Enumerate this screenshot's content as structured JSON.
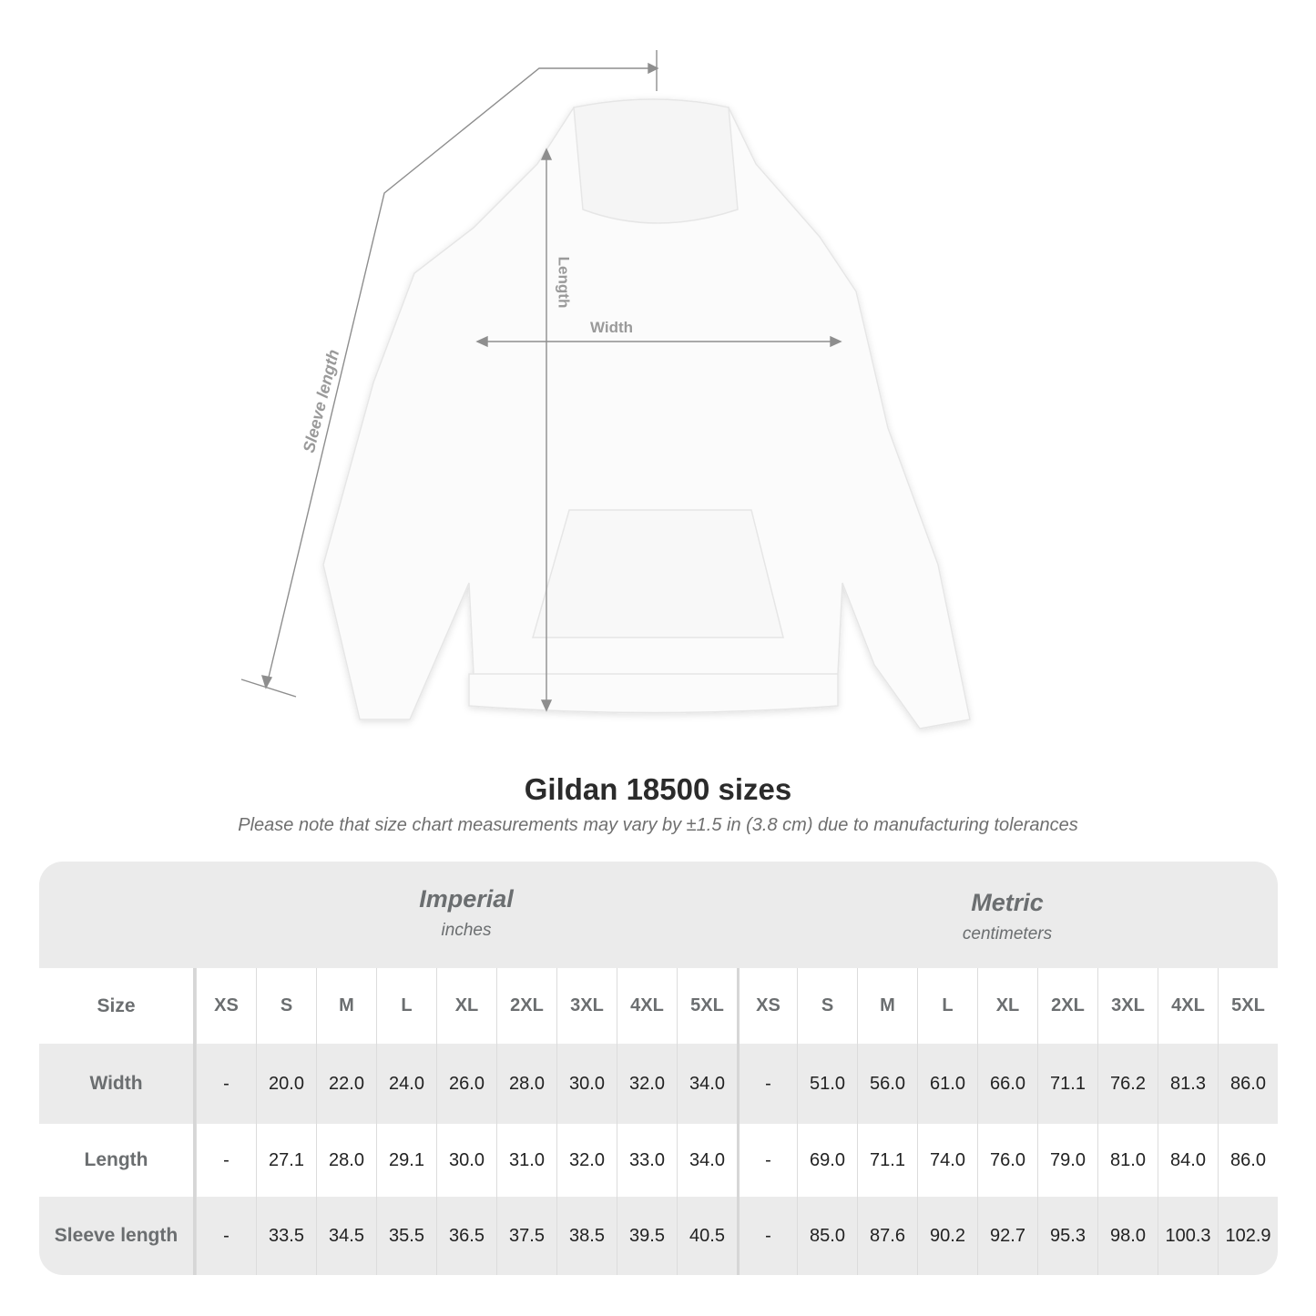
{
  "diagram": {
    "labels": {
      "sleeve": "Sleeve length",
      "length": "Length",
      "width": "Width"
    }
  },
  "title": "Gildan 18500 sizes",
  "subtitle": "Please note that size chart measurements may vary by ±1.5 in (3.8 cm) due to manufacturing tolerances",
  "table": {
    "imperial": {
      "name": "Imperial",
      "unit": "inches"
    },
    "metric": {
      "name": "Metric",
      "unit": "centimeters"
    },
    "size_label": "Size",
    "sizes": [
      "XS",
      "S",
      "M",
      "L",
      "XL",
      "2XL",
      "3XL",
      "4XL",
      "5XL"
    ],
    "rows": [
      {
        "label": "Width",
        "imperial": [
          "-",
          "20.0",
          "22.0",
          "24.0",
          "26.0",
          "28.0",
          "30.0",
          "32.0",
          "34.0"
        ],
        "metric": [
          "-",
          "51.0",
          "56.0",
          "61.0",
          "66.0",
          "71.1",
          "76.2",
          "81.3",
          "86.0"
        ]
      },
      {
        "label": "Length",
        "imperial": [
          "-",
          "27.1",
          "28.0",
          "29.1",
          "30.0",
          "31.0",
          "32.0",
          "33.0",
          "34.0"
        ],
        "metric": [
          "-",
          "69.0",
          "71.1",
          "74.0",
          "76.0",
          "79.0",
          "81.0",
          "84.0",
          "86.0"
        ]
      },
      {
        "label": "Sleeve length",
        "imperial": [
          "-",
          "33.5",
          "34.5",
          "35.5",
          "36.5",
          "37.5",
          "38.5",
          "39.5",
          "40.5"
        ],
        "metric": [
          "-",
          "85.0",
          "87.6",
          "90.2",
          "92.7",
          "95.3",
          "98.0",
          "100.3",
          "102.9"
        ]
      }
    ]
  }
}
